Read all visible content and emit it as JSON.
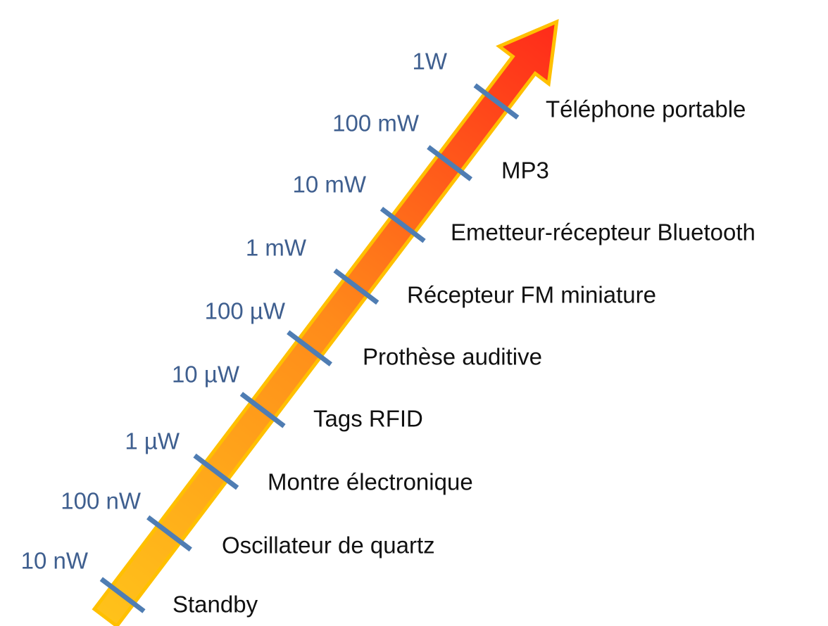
{
  "levels": [
    {
      "power": "10 nW",
      "device": "Standby"
    },
    {
      "power": "100 nW",
      "device": "Oscillateur de quartz"
    },
    {
      "power": "1 µW",
      "device": "Montre électronique"
    },
    {
      "power": "10 µW",
      "device": "Tags RFID"
    },
    {
      "power": "100 µW",
      "device": "Prothèse auditive"
    },
    {
      "power": "1 mW",
      "device": "Récepteur FM miniature"
    },
    {
      "power": "10 mW",
      "device": "Emetteur-récepteur Bluetooth"
    },
    {
      "power": "100 mW",
      "device": "MP3"
    },
    {
      "power": "1W",
      "device": "Téléphone portable"
    }
  ]
}
